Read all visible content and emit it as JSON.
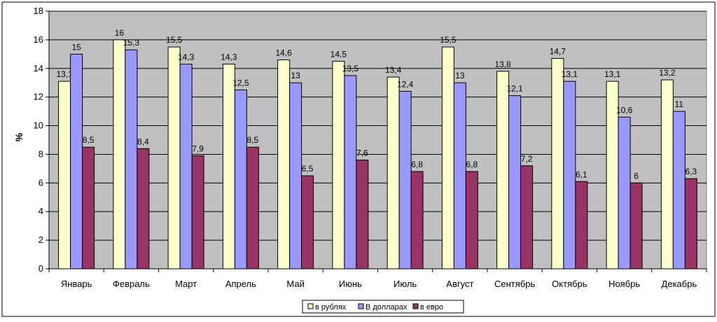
{
  "chart_data": {
    "type": "bar",
    "title": "",
    "xlabel": "",
    "ylabel": "%",
    "ylim": [
      0,
      18
    ],
    "ytick_step": 2,
    "grid": true,
    "legend_position": "bottom",
    "plot_background": "#c0c0c0",
    "categories": [
      "Январь",
      "Февраль",
      "Март",
      "Апрель",
      "Май",
      "Июнь",
      "Июль",
      "Август",
      "Сентябрь",
      "Октябрь",
      "Ноябрь",
      "Декабрь"
    ],
    "series": [
      {
        "name": "в рублях",
        "color": "#ffffcc",
        "values": [
          13.1,
          16,
          15.5,
          14.3,
          14.6,
          14.5,
          13.4,
          15.5,
          13.8,
          14.7,
          13.1,
          13.2
        ],
        "labels": [
          "13,1",
          "16",
          "15,5",
          "14,3",
          "14,6",
          "14,5",
          "13,4",
          "15,5",
          "13,8",
          "14,7",
          "13,1",
          "13,2"
        ]
      },
      {
        "name": "В долларах",
        "color": "#9999ff",
        "values": [
          15,
          15.3,
          14.3,
          12.5,
          13,
          13.5,
          12.4,
          13,
          12.1,
          13.1,
          10.6,
          11
        ],
        "labels": [
          "15",
          "15,3",
          "14,3",
          "12,5",
          "13",
          "13,5",
          "12,4",
          "13",
          "12,1",
          "13,1",
          "10,6",
          "11"
        ]
      },
      {
        "name": "в евро",
        "color": "#993366",
        "values": [
          8.5,
          8.4,
          7.9,
          8.5,
          6.5,
          7.6,
          6.8,
          6.8,
          7.2,
          6.1,
          6,
          6.3
        ],
        "labels": [
          "8,5",
          "8,4",
          "7,9",
          "8,5",
          "6,5",
          "7,6",
          "6,8",
          "6,8",
          "7,2",
          "6,1",
          "6",
          "6,3"
        ]
      }
    ]
  }
}
